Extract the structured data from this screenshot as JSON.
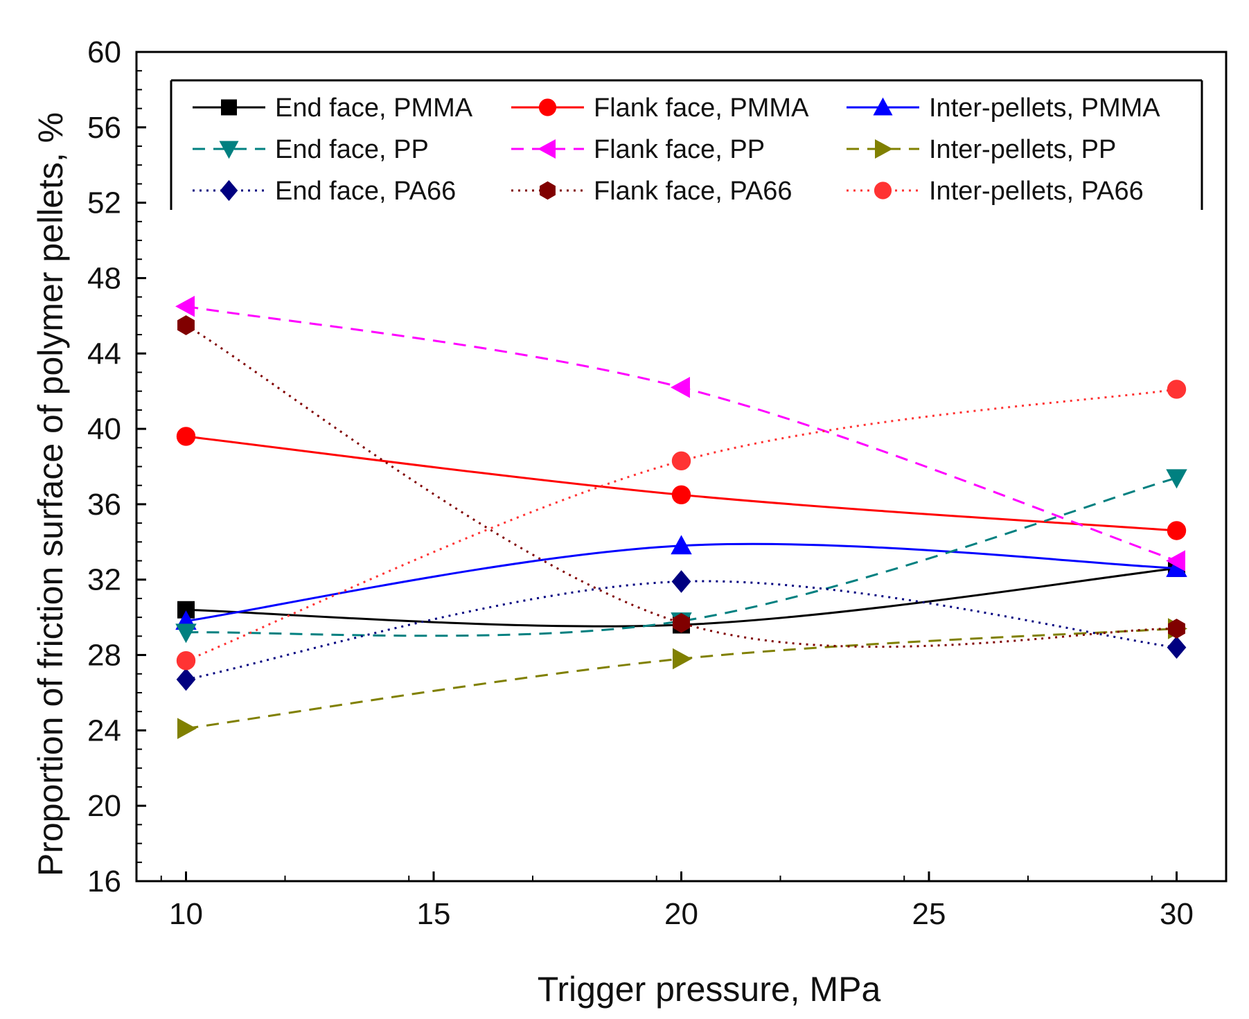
{
  "chart_data": {
    "type": "line",
    "title": "",
    "xlabel": "Trigger  pressure, MPa",
    "ylabel": "Proportion of friction surface of polymer pellets, %",
    "xlim": [
      9,
      31
    ],
    "ylim": [
      16,
      60
    ],
    "xticks": [
      10,
      15,
      20,
      25,
      30
    ],
    "yticks": [
      16,
      20,
      24,
      28,
      32,
      36,
      40,
      44,
      48,
      52,
      56,
      60
    ],
    "grid": false,
    "legend_position": "top",
    "x": [
      10,
      20,
      30
    ],
    "series": [
      {
        "name": "End face, PMMA",
        "values": [
          30.4,
          29.6,
          32.6
        ],
        "color": "#000000",
        "dash": "solid",
        "marker": "square"
      },
      {
        "name": "Flank face, PMMA",
        "values": [
          39.6,
          36.5,
          34.6
        ],
        "color": "#ff0000",
        "dash": "solid",
        "marker": "circle"
      },
      {
        "name": "Inter-pellets, PMMA",
        "values": [
          29.8,
          33.8,
          32.6
        ],
        "color": "#0000ff",
        "dash": "solid",
        "marker": "triangle-up"
      },
      {
        "name": "End face, PP",
        "values": [
          29.2,
          29.8,
          37.4
        ],
        "color": "#008080",
        "dash": "dashed",
        "marker": "triangle-down"
      },
      {
        "name": "Flank face, PP",
        "values": [
          46.5,
          42.2,
          33.0
        ],
        "color": "#ff00ff",
        "dash": "dashed",
        "marker": "triangle-left"
      },
      {
        "name": "Inter-pellets, PP",
        "values": [
          24.1,
          27.8,
          29.4
        ],
        "color": "#808000",
        "dash": "dashed",
        "marker": "triangle-right"
      },
      {
        "name": "End face, PA66",
        "values": [
          26.7,
          31.9,
          28.4
        ],
        "color": "#000080",
        "dash": "dotted",
        "marker": "diamond"
      },
      {
        "name": "Flank face, PA66",
        "values": [
          45.5,
          29.7,
          29.4
        ],
        "color": "#800000",
        "dash": "dotted",
        "marker": "hexagon"
      },
      {
        "name": "Inter-pellets, PA66",
        "values": [
          27.7,
          38.3,
          42.1
        ],
        "color": "#ff3333",
        "dash": "dotted",
        "marker": "circle"
      }
    ]
  }
}
